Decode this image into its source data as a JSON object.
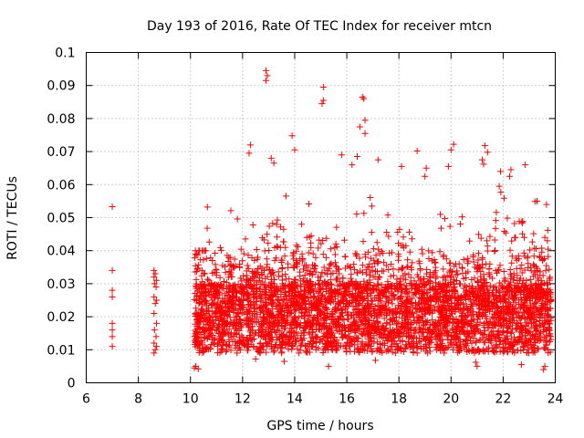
{
  "chart_data": {
    "type": "scatter",
    "title": "Day 193 of 2016, Rate Of TEC Index for receiver mtcn",
    "xlabel": "GPS time / hours",
    "ylabel": "ROTI / TECUs",
    "xlim": [
      6,
      24
    ],
    "ylim": [
      0,
      0.1
    ],
    "xticks": [
      6,
      8,
      10,
      12,
      14,
      16,
      18,
      20,
      22,
      24
    ],
    "xtick_labels": [
      "6",
      "8",
      "10",
      "12",
      "14",
      "16",
      "18",
      "20",
      "22",
      "24"
    ],
    "yticks": [
      0,
      0.01,
      0.02,
      0.03,
      0.04,
      0.05,
      0.06,
      0.07,
      0.08,
      0.09,
      0.1
    ],
    "ytick_labels": [
      "0",
      "0.01",
      "0.02",
      "0.03",
      "0.04",
      "0.05",
      "0.06",
      "0.07",
      "0.08",
      "0.09",
      "0.1"
    ],
    "grid": true,
    "marker": "+",
    "color": "#ff0000",
    "series": [
      {
        "name": "ROTI",
        "points": [
          [
            7.0,
            0.0533
          ],
          [
            7.0,
            0.034
          ],
          [
            7.0,
            0.028
          ],
          [
            7.0,
            0.026
          ],
          [
            7.0,
            0.018
          ],
          [
            7.0,
            0.016
          ],
          [
            7.0,
            0.014
          ],
          [
            7.0,
            0.011
          ],
          [
            8.6,
            0.034
          ],
          [
            8.65,
            0.033
          ],
          [
            8.6,
            0.032
          ],
          [
            8.7,
            0.031
          ],
          [
            8.62,
            0.03
          ],
          [
            8.68,
            0.029
          ],
          [
            8.6,
            0.026
          ],
          [
            8.7,
            0.025
          ],
          [
            8.65,
            0.024
          ],
          [
            8.6,
            0.021
          ],
          [
            8.7,
            0.018
          ],
          [
            8.62,
            0.016
          ],
          [
            8.68,
            0.014
          ],
          [
            8.6,
            0.012
          ],
          [
            8.7,
            0.011
          ],
          [
            8.65,
            0.01
          ],
          [
            8.6,
            0.009
          ],
          [
            12.9,
            0.0945
          ],
          [
            12.95,
            0.093
          ],
          [
            12.9,
            0.0915
          ],
          [
            15.1,
            0.0895
          ],
          [
            15.1,
            0.0855
          ],
          [
            15.05,
            0.0845
          ],
          [
            16.6,
            0.0865
          ],
          [
            16.65,
            0.086
          ],
          [
            16.7,
            0.0795
          ],
          [
            16.5,
            0.0775
          ],
          [
            16.7,
            0.0755
          ],
          [
            13.9,
            0.0748
          ],
          [
            12.3,
            0.072
          ],
          [
            12.25,
            0.0695
          ],
          [
            20.1,
            0.0722
          ],
          [
            20.0,
            0.0705
          ],
          [
            21.3,
            0.0718
          ],
          [
            21.4,
            0.0698
          ],
          [
            14.0,
            0.0705
          ],
          [
            13.1,
            0.068
          ],
          [
            13.2,
            0.0665
          ],
          [
            15.8,
            0.069
          ],
          [
            16.2,
            0.066
          ],
          [
            16.4,
            0.0685
          ],
          [
            22.3,
            0.0645
          ],
          [
            22.25,
            0.0625
          ],
          [
            21.2,
            0.0675
          ],
          [
            21.25,
            0.0662
          ],
          [
            19.9,
            0.0655
          ],
          [
            19.05,
            0.065
          ],
          [
            17.2,
            0.0675
          ],
          [
            18.7,
            0.0702
          ],
          [
            18.1,
            0.0655
          ],
          [
            19.0,
            0.0625
          ],
          [
            22.85,
            0.066
          ],
          [
            21.9,
            0.064
          ],
          [
            21.85,
            0.0595
          ],
          [
            23.3,
            0.055
          ],
          [
            23.6,
            0.044
          ],
          [
            23.7,
            0.043
          ],
          [
            23.55,
            0.004
          ],
          [
            23.6,
            0.005
          ],
          [
            10.15,
            0.0045
          ],
          [
            10.2,
            0.005
          ],
          [
            10.3,
            0.0042
          ],
          [
            15.3,
            0.005
          ],
          [
            21.0,
            0.005
          ],
          [
            22.7,
            0.0055
          ],
          [
            20.95,
            0.0062
          ],
          [
            17.1,
            0.0068
          ],
          [
            12.5,
            0.0072
          ],
          [
            13.6,
            0.0065
          ]
        ]
      }
    ]
  }
}
